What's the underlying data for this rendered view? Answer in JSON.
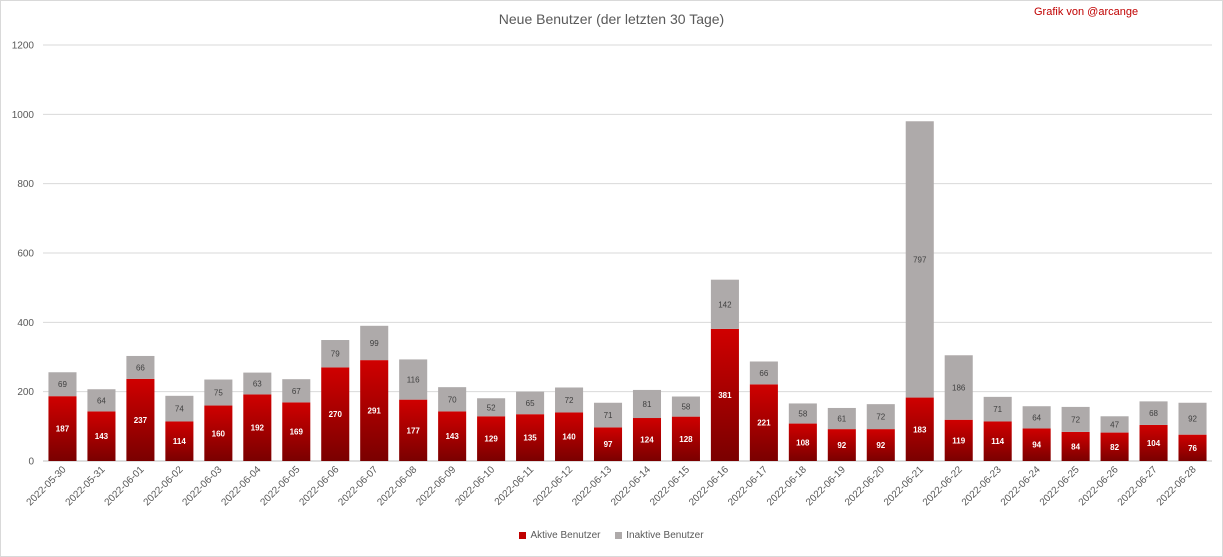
{
  "chart_data": {
    "type": "bar",
    "stacked": true,
    "title": "Neue Benutzer (der letzten 30 Tage)",
    "credit": "Grafik von @arcange",
    "categories": [
      "2022-05-30",
      "2022-05-31",
      "2022-06-01",
      "2022-06-02",
      "2022-06-03",
      "2022-06-04",
      "2022-06-05",
      "2022-06-06",
      "2022-06-07",
      "2022-06-08",
      "2022-06-09",
      "2022-06-10",
      "2022-06-11",
      "2022-06-12",
      "2022-06-13",
      "2022-06-14",
      "2022-06-15",
      "2022-06-16",
      "2022-06-17",
      "2022-06-18",
      "2022-06-19",
      "2022-06-20",
      "2022-06-21",
      "2022-06-22",
      "2022-06-23",
      "2022-06-24",
      "2022-06-25",
      "2022-06-26",
      "2022-06-27",
      "2022-06-28"
    ],
    "series": [
      {
        "name": "Aktive Benutzer",
        "color": "#c00000",
        "values": [
          187,
          143,
          237,
          114,
          160,
          192,
          169,
          270,
          291,
          177,
          143,
          129,
          135,
          140,
          97,
          124,
          128,
          381,
          221,
          108,
          92,
          92,
          183,
          119,
          114,
          94,
          84,
          82,
          104,
          76
        ]
      },
      {
        "name": "Inaktive Benutzer",
        "color": "#aeaaaa",
        "values": [
          69,
          64,
          66,
          74,
          75,
          63,
          67,
          79,
          99,
          116,
          70,
          52,
          65,
          72,
          71,
          81,
          58,
          142,
          66,
          58,
          61,
          72,
          797,
          186,
          71,
          64,
          72,
          47,
          68,
          92
        ]
      }
    ],
    "ylim": [
      0,
      1200
    ],
    "yticks": [
      0,
      200,
      400,
      600,
      800,
      1000,
      1200
    ],
    "grid": true,
    "legend_position": "bottom"
  }
}
